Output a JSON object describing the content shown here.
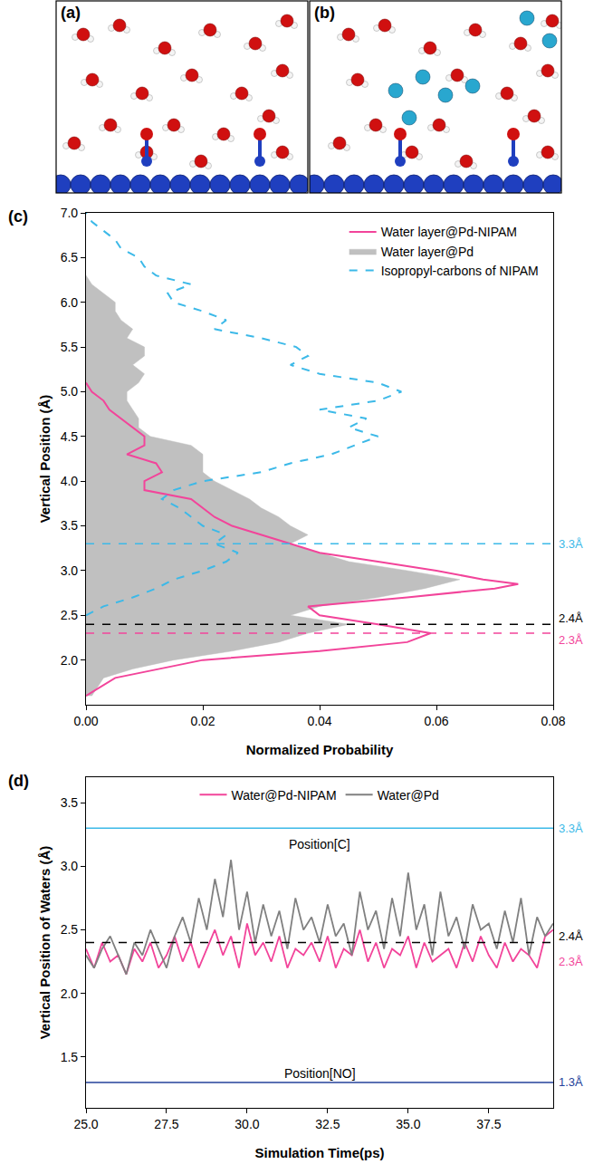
{
  "panels": [
    {
      "label": "(a)"
    },
    {
      "label": "(b)"
    }
  ],
  "chart_data": [
    {
      "type": "line",
      "label": "(c)",
      "x_label": "Normalized Probability",
      "y_label": "Vertical Position (Å)",
      "xlim": [
        0,
        0.08
      ],
      "xticks": [
        {
          "value": 0,
          "label": "0.00"
        },
        {
          "value": 0.02,
          "label": "0.02"
        },
        {
          "value": 0.04,
          "label": "0.04"
        },
        {
          "value": 0.06,
          "label": "0.06"
        },
        {
          "value": 0.08,
          "label": "0.08"
        }
      ],
      "ylim": [
        1.5,
        7.0
      ],
      "yticks": [
        {
          "value": 2.0,
          "label": "2.0"
        },
        {
          "value": 2.5,
          "label": "2.5"
        },
        {
          "value": 3.0,
          "label": "3.0"
        },
        {
          "value": 3.5,
          "label": "3.5"
        },
        {
          "value": 4.0,
          "label": "4.0"
        },
        {
          "value": 4.5,
          "label": "4.5"
        },
        {
          "value": 5.0,
          "label": "5.0"
        },
        {
          "value": 5.5,
          "label": "5.5"
        },
        {
          "value": 6.0,
          "label": "6.0"
        },
        {
          "value": 6.5,
          "label": "6.5"
        },
        {
          "value": 7.0,
          "label": "7.0"
        }
      ],
      "grid": false,
      "legend": "upper right",
      "series": [
        {
          "name": "Water layer@Pd-NIPAM",
          "type": "line",
          "color": "#f2449a",
          "line_style": "solid",
          "x": [
            0,
            0.005,
            0.02,
            0.04,
            0.055,
            0.059,
            0.05,
            0.04,
            0.038,
            0.055,
            0.07,
            0.074,
            0.068,
            0.06,
            0.05,
            0.04,
            0.035,
            0.03,
            0.025,
            0.022,
            0.02,
            0.018,
            0.01,
            0.01,
            0.013,
            0.012,
            0.007,
            0.01,
            0.01,
            0.008,
            0.006,
            0.004,
            0.003,
            0.001,
            0
          ],
          "y": [
            1.6,
            1.8,
            2.0,
            2.1,
            2.2,
            2.3,
            2.4,
            2.5,
            2.6,
            2.7,
            2.8,
            2.85,
            2.9,
            3.0,
            3.1,
            3.2,
            3.3,
            3.4,
            3.5,
            3.6,
            3.7,
            3.8,
            3.9,
            4.0,
            4.1,
            4.2,
            4.3,
            4.4,
            4.5,
            4.6,
            4.7,
            4.8,
            4.9,
            5.0,
            5.1
          ]
        },
        {
          "name": "Water layer@Pd",
          "type": "area",
          "color": "#c0c0c0",
          "line_style": "solid",
          "x": [
            0.001,
            0.003,
            0.008,
            0.015,
            0.025,
            0.033,
            0.038,
            0.045,
            0.035,
            0.04,
            0.05,
            0.058,
            0.064,
            0.055,
            0.045,
            0.04,
            0.035,
            0.038,
            0.035,
            0.033,
            0.03,
            0.028,
            0.025,
            0.022,
            0.02,
            0.02,
            0.02,
            0.018,
            0.011,
            0.009,
            0.009,
            0.008,
            0.007,
            0.007,
            0.009,
            0.01,
            0.008,
            0.01,
            0.01,
            0.007,
            0.008,
            0.006,
            0.005,
            0.005,
            0.003,
            0.001,
            0
          ],
          "y": [
            1.6,
            1.8,
            1.9,
            2.0,
            2.1,
            2.2,
            2.3,
            2.4,
            2.5,
            2.6,
            2.7,
            2.8,
            2.9,
            3.0,
            3.1,
            3.2,
            3.3,
            3.4,
            3.5,
            3.6,
            3.7,
            3.8,
            3.9,
            4.0,
            4.1,
            4.2,
            4.3,
            4.4,
            4.5,
            4.6,
            4.7,
            4.8,
            4.9,
            5.0,
            5.1,
            5.2,
            5.3,
            5.4,
            5.5,
            5.6,
            5.7,
            5.8,
            5.9,
            6.0,
            6.1,
            6.2,
            6.3
          ]
        },
        {
          "name": "Isopropyl-carbons of NIPAM",
          "type": "line",
          "color": "#3cb9e8",
          "line_style": "dash",
          "x": [
            0,
            0.003,
            0.008,
            0.012,
            0.015,
            0.02,
            0.024,
            0.026,
            0.022,
            0.024,
            0.02,
            0.018,
            0.016,
            0.013,
            0.015,
            0.02,
            0.03,
            0.035,
            0.042,
            0.046,
            0.05,
            0.045,
            0.048,
            0.04,
            0.05,
            0.054,
            0.05,
            0.04,
            0.035,
            0.038,
            0.036,
            0.03,
            0.022,
            0.024,
            0.02,
            0.015,
            0.014,
            0.018,
            0.012,
            0.01,
            0.009,
            0.006,
            0.005,
            0.003,
            0.001,
            0
          ],
          "y": [
            2.5,
            2.6,
            2.7,
            2.8,
            2.9,
            3.0,
            3.1,
            3.2,
            3.3,
            3.4,
            3.5,
            3.6,
            3.7,
            3.8,
            3.9,
            4.0,
            4.1,
            4.2,
            4.3,
            4.4,
            4.5,
            4.6,
            4.7,
            4.8,
            4.9,
            5.0,
            5.1,
            5.2,
            5.3,
            5.4,
            5.5,
            5.6,
            5.7,
            5.8,
            5.9,
            6.0,
            6.1,
            6.2,
            6.3,
            6.4,
            6.5,
            6.6,
            6.7,
            6.8,
            6.9,
            7.0
          ]
        }
      ],
      "reference_lines": [
        {
          "value": 3.3,
          "label": "3.3Å",
          "color": "#3cb9e8",
          "line_style": "dash"
        },
        {
          "value": 2.4,
          "label": "2.4Å",
          "color": "#000000",
          "line_style": "dash"
        },
        {
          "value": 2.3,
          "label": "2.3Å",
          "color": "#f2449a",
          "line_style": "dash"
        }
      ]
    },
    {
      "type": "line",
      "label": "(d)",
      "x_label": "Simulation Time(ps)",
      "y_label": "Vertical Position of Waters (Å)",
      "xlim": [
        25,
        39.5
      ],
      "xticks": [
        {
          "value": 25,
          "label": "25.0"
        },
        {
          "value": 27.5,
          "label": "27.5"
        },
        {
          "value": 30,
          "label": "30.0"
        },
        {
          "value": 32.5,
          "label": "32.5"
        },
        {
          "value": 35,
          "label": "35.0"
        },
        {
          "value": 37.5,
          "label": "37.5"
        }
      ],
      "ylim": [
        1.1,
        3.7
      ],
      "yticks": [
        {
          "value": 1.5,
          "label": "1.5"
        },
        {
          "value": 2.0,
          "label": "2.0"
        },
        {
          "value": 2.5,
          "label": "2.5"
        },
        {
          "value": 3.0,
          "label": "3.0"
        },
        {
          "value": 3.5,
          "label": "3.5"
        }
      ],
      "grid": false,
      "legend": "upper center",
      "x": [
        25,
        25.25,
        25.5,
        25.75,
        26,
        26.25,
        26.5,
        26.75,
        27,
        27.25,
        27.5,
        27.75,
        28,
        28.25,
        28.5,
        28.75,
        29,
        29.25,
        29.5,
        29.75,
        30,
        30.25,
        30.5,
        30.75,
        31,
        31.25,
        31.5,
        31.75,
        32,
        32.25,
        32.5,
        32.75,
        33,
        33.25,
        33.5,
        33.75,
        34,
        34.25,
        34.5,
        34.75,
        35,
        35.25,
        35.5,
        35.75,
        36,
        36.25,
        36.5,
        36.75,
        37,
        37.25,
        37.5,
        37.75,
        38,
        38.25,
        38.5,
        38.75,
        39,
        39.25,
        39.5
      ],
      "series": [
        {
          "name": "Water@Pd-NIPAM",
          "color": "#f2449a",
          "line_style": "solid",
          "values": [
            2.35,
            2.2,
            2.4,
            2.25,
            2.3,
            2.15,
            2.35,
            2.25,
            2.4,
            2.2,
            2.3,
            2.45,
            2.25,
            2.4,
            2.2,
            2.35,
            2.5,
            2.3,
            2.45,
            2.2,
            2.55,
            2.3,
            2.4,
            2.25,
            2.45,
            2.2,
            2.35,
            2.3,
            2.4,
            2.25,
            2.45,
            2.2,
            2.35,
            2.3,
            2.5,
            2.25,
            2.4,
            2.2,
            2.35,
            2.3,
            2.45,
            2.2,
            2.4,
            2.25,
            2.3,
            2.35,
            2.2,
            2.4,
            2.25,
            2.45,
            2.3,
            2.2,
            2.4,
            2.25,
            2.35,
            2.3,
            2.2,
            2.45,
            2.5
          ]
        },
        {
          "name": "Water@Pd",
          "color": "#808080",
          "line_style": "solid",
          "values": [
            2.3,
            2.2,
            2.35,
            2.45,
            2.3,
            2.15,
            2.4,
            2.3,
            2.5,
            2.35,
            2.2,
            2.45,
            2.6,
            2.4,
            2.75,
            2.5,
            2.9,
            2.6,
            3.05,
            2.5,
            2.8,
            2.4,
            2.7,
            2.45,
            2.65,
            2.35,
            2.75,
            2.5,
            2.6,
            2.4,
            2.7,
            2.45,
            2.55,
            2.3,
            2.8,
            2.5,
            2.65,
            2.35,
            2.75,
            2.45,
            2.95,
            2.5,
            2.7,
            2.3,
            2.8,
            2.45,
            2.6,
            2.35,
            2.7,
            2.5,
            2.55,
            2.35,
            2.65,
            2.4,
            2.75,
            2.3,
            2.6,
            2.45,
            2.55
          ]
        }
      ],
      "reference_lines": [
        {
          "value": 3.3,
          "label": "3.3Å",
          "color": "#3cb9e8",
          "line_style": "solid"
        },
        {
          "value": 2.4,
          "label": "2.4Å",
          "color": "#000000",
          "line_style": "dash"
        },
        {
          "value": 2.3,
          "label": "2.3Å",
          "color": "#f2449a",
          "line_style": "none"
        },
        {
          "value": 1.3,
          "label": "1.3Å",
          "color": "#23409a",
          "line_style": "solid"
        }
      ],
      "annotations": [
        {
          "text": "Position[C]",
          "x": 32.25,
          "y": 3.17
        },
        {
          "text": "Position[NO]",
          "x": 32.25,
          "y": 1.37
        }
      ]
    }
  ]
}
